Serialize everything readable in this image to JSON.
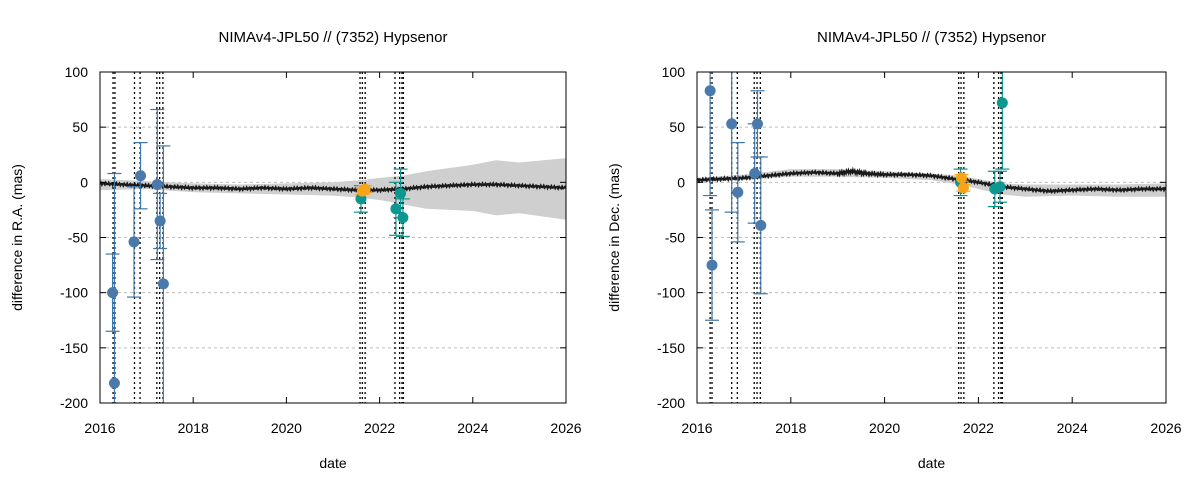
{
  "colors": {
    "blue": "#4a79ab",
    "blue_bar": "#3f78a8",
    "teal": "#0e9791",
    "orange": "#f6a51b",
    "band": "#cfcfcf",
    "line": "#1a1a1a",
    "grid": "#bdbdbd"
  },
  "chart_data": [
    {
      "type": "scatter",
      "title": "NIMAv4-JPL50 // (7352) Hypsenor",
      "xlabel": "date",
      "ylabel": "difference in R.A. (mas)",
      "xlim": [
        2016,
        2026
      ],
      "ylim": [
        -200,
        100
      ],
      "xticks": [
        2016,
        2018,
        2020,
        2022,
        2024,
        2026
      ],
      "yticks": [
        100,
        50,
        0,
        -50,
        -100,
        -150,
        -200
      ],
      "grid": "horizontal dashed",
      "vlines": [
        2016.28,
        2016.32,
        2016.74,
        2016.86,
        2017.22,
        2017.28,
        2017.35,
        2021.58,
        2021.63,
        2021.69,
        2022.33,
        2022.43,
        2022.48,
        2022.51
      ],
      "uncertainty_band": {
        "x": [
          2016,
          2017,
          2018,
          2019,
          2020,
          2021,
          2021.6,
          2022,
          2022.5,
          2023,
          2024,
          2024.5,
          2025,
          2026
        ],
        "upper": [
          3,
          1,
          -1,
          -2,
          -1,
          0,
          2,
          4,
          6,
          10,
          16,
          20,
          18,
          22
        ],
        "lower": [
          -7,
          -6,
          -9,
          -10,
          -11,
          -12,
          -14,
          -16,
          -20,
          -24,
          -26,
          -30,
          -28,
          -34
        ]
      },
      "model_line": {
        "x": [
          2016,
          2016.5,
          2017,
          2017.5,
          2018,
          2018.5,
          2019,
          2019.5,
          2020,
          2020.5,
          2021,
          2021.5,
          2022,
          2022.5,
          2023,
          2023.5,
          2024,
          2024.5,
          2025,
          2025.5,
          2026
        ],
        "y": [
          -1,
          -2,
          -3,
          -4,
          -5,
          -5,
          -6,
          -5,
          -6,
          -5,
          -6,
          -7,
          -7,
          -6,
          -4,
          -3,
          -2,
          -2,
          -3,
          -4,
          -5
        ]
      },
      "series": [
        {
          "name": "blue",
          "color": "blue",
          "points": [
            {
              "x": 2016.27,
              "y": -100,
              "err": 35
            },
            {
              "x": 2016.31,
              "y": -182,
              "err": 190
            },
            {
              "x": 2016.73,
              "y": -54,
              "err": 50
            },
            {
              "x": 2016.87,
              "y": 6,
              "err": 30
            },
            {
              "x": 2017.23,
              "y": -2,
              "err": 68
            },
            {
              "x": 2017.29,
              "y": -35,
              "err": 25
            },
            {
              "x": 2017.36,
              "y": -92,
              "err": 125
            }
          ]
        },
        {
          "name": "teal",
          "color": "teal",
          "points": [
            {
              "x": 2021.6,
              "y": -15,
              "err": 12
            },
            {
              "x": 2022.35,
              "y": -24,
              "err": 24
            },
            {
              "x": 2022.45,
              "y": -10,
              "err": 22
            },
            {
              "x": 2022.5,
              "y": -32,
              "err": 17
            }
          ]
        },
        {
          "name": "orange",
          "color": "orange",
          "points": [
            {
              "x": 2021.63,
              "y": -8,
              "err": 3
            },
            {
              "x": 2021.69,
              "y": -6,
              "err": 3
            }
          ]
        }
      ]
    },
    {
      "type": "scatter",
      "title": "NIMAv4-JPL50 // (7352) Hypsenor",
      "xlabel": "date",
      "ylabel": "difference in Dec. (mas)",
      "xlim": [
        2016,
        2026
      ],
      "ylim": [
        -200,
        100
      ],
      "xticks": [
        2016,
        2018,
        2020,
        2022,
        2024,
        2026
      ],
      "yticks": [
        100,
        50,
        0,
        -50,
        -100,
        -150,
        -200
      ],
      "grid": "horizontal dashed",
      "vlines": [
        2016.28,
        2016.32,
        2016.74,
        2016.86,
        2017.22,
        2017.28,
        2017.35,
        2021.58,
        2021.63,
        2021.69,
        2022.33,
        2022.43,
        2022.48,
        2022.51
      ],
      "uncertainty_band": {
        "x": [
          2016,
          2017,
          2018,
          2019,
          2020,
          2021,
          2021.6,
          2022,
          2022.5,
          2023,
          2024,
          2025,
          2026
        ],
        "upper": [
          4,
          7,
          12,
          12,
          10,
          8,
          6,
          3,
          -1,
          -2,
          -2,
          -2,
          -1
        ],
        "lower": [
          0,
          2,
          5,
          5,
          4,
          2,
          -2,
          -6,
          -11,
          -13,
          -12,
          -13,
          -13
        ]
      },
      "model_line": {
        "x": [
          2016,
          2016.5,
          2017,
          2017.5,
          2018,
          2018.5,
          2019,
          2019.3,
          2019.6,
          2020,
          2020.5,
          2021,
          2021.5,
          2022,
          2022.5,
          2023,
          2023.5,
          2024,
          2024.5,
          2025,
          2025.5,
          2026
        ],
        "y": [
          2,
          3,
          4,
          6,
          8,
          9,
          8,
          10,
          8,
          7,
          7,
          6,
          3,
          0,
          -4,
          -6,
          -8,
          -7,
          -6,
          -7,
          -6,
          -6
        ]
      },
      "series": [
        {
          "name": "blue",
          "color": "blue",
          "points": [
            {
              "x": 2016.28,
              "y": 83,
              "err": 95
            },
            {
              "x": 2016.32,
              "y": -75,
              "err": 50
            },
            {
              "x": 2016.74,
              "y": 53,
              "err": 80
            },
            {
              "x": 2016.87,
              "y": -9,
              "err": 45
            },
            {
              "x": 2017.23,
              "y": 8,
              "err": 45
            },
            {
              "x": 2017.29,
              "y": 53,
              "err": 30
            },
            {
              "x": 2017.36,
              "y": -39,
              "err": 62
            }
          ]
        },
        {
          "name": "teal",
          "color": "teal",
          "points": [
            {
              "x": 2021.62,
              "y": 0,
              "err": 12
            },
            {
              "x": 2022.35,
              "y": -6,
              "err": 16
            },
            {
              "x": 2022.46,
              "y": -4,
              "err": 14
            },
            {
              "x": 2022.51,
              "y": 72,
              "err": 60
            }
          ]
        },
        {
          "name": "orange",
          "color": "orange",
          "points": [
            {
              "x": 2021.64,
              "y": 4,
              "err": 3
            },
            {
              "x": 2021.68,
              "y": -5,
              "err": 3
            }
          ]
        }
      ]
    }
  ]
}
